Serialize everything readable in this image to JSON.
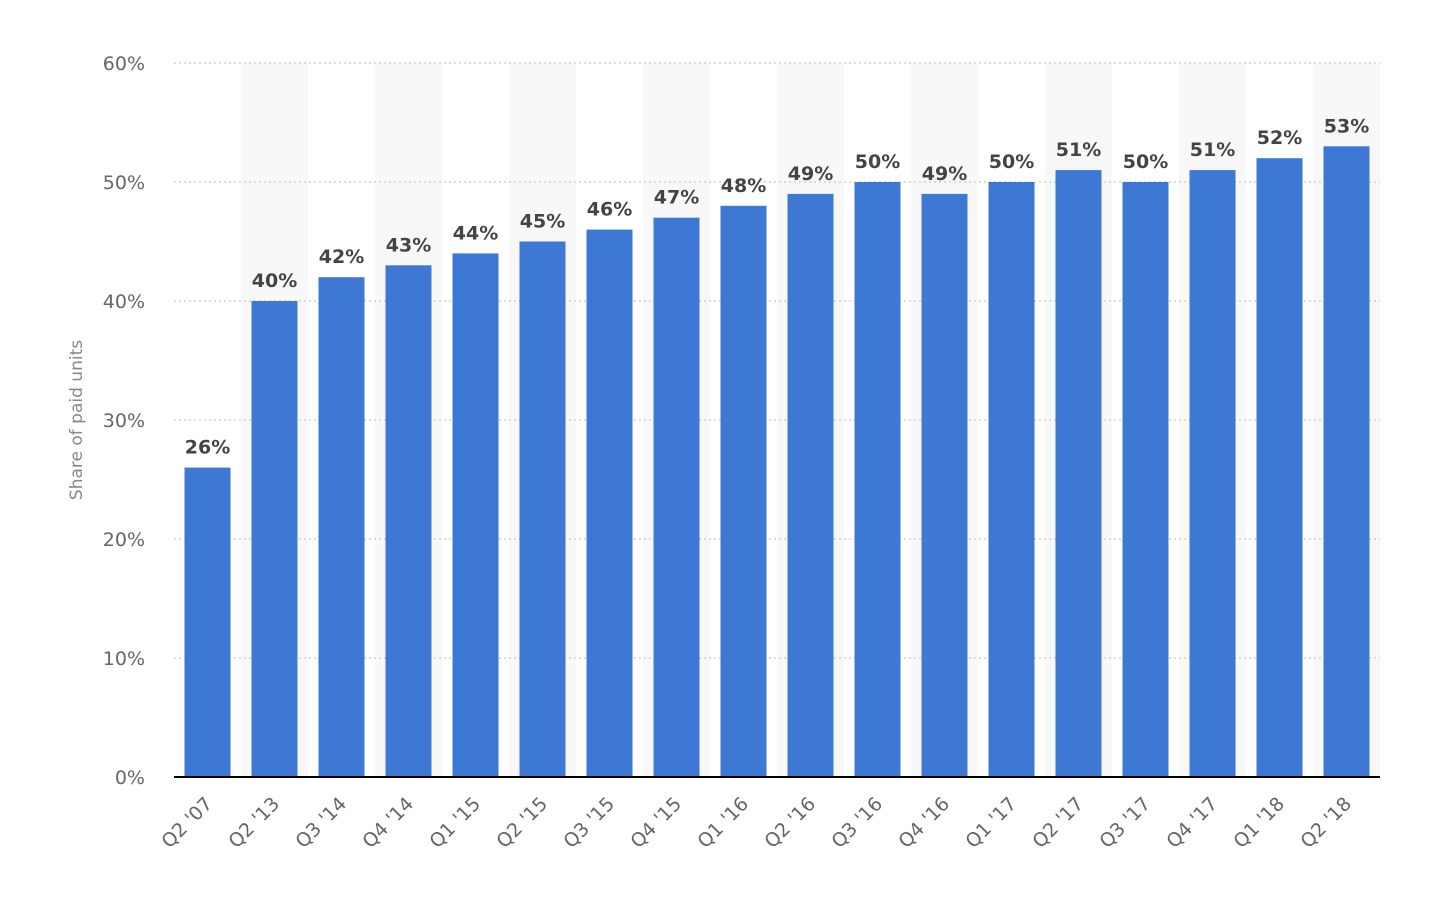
{
  "chart_data": {
    "type": "bar",
    "categories": [
      "Q2 '07",
      "Q2 '13",
      "Q3 '14",
      "Q4 '14",
      "Q1 '15",
      "Q2 '15",
      "Q3 '15",
      "Q4 '15",
      "Q1 '16",
      "Q2 '16",
      "Q3 '16",
      "Q4 '16",
      "Q1 '17",
      "Q2 '17",
      "Q3 '17",
      "Q4 '17",
      "Q1 '18",
      "Q2 '18"
    ],
    "values": [
      26,
      40,
      42,
      43,
      44,
      45,
      46,
      47,
      48,
      49,
      50,
      49,
      50,
      51,
      50,
      51,
      52,
      53
    ],
    "data_labels": [
      "26%",
      "40%",
      "42%",
      "43%",
      "44%",
      "45%",
      "46%",
      "47%",
      "48%",
      "49%",
      "50%",
      "49%",
      "50%",
      "51%",
      "50%",
      "51%",
      "52%",
      "53%"
    ],
    "ylabel": "Share of paid units",
    "ylim": [
      0,
      60
    ],
    "yticks": [
      0,
      10,
      20,
      30,
      40,
      50,
      60
    ],
    "ytick_labels": [
      "0%",
      "10%",
      "20%",
      "30%",
      "40%",
      "50%",
      "60%"
    ],
    "grid": true,
    "colors": {
      "bar": "#3e78d5",
      "band": "#f8f8f8",
      "grid": "#bbbbbb",
      "axis": "#000000"
    }
  }
}
